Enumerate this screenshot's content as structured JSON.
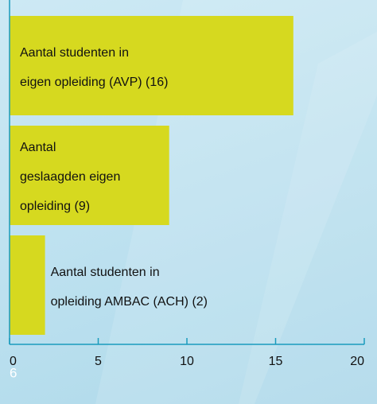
{
  "chart_data": {
    "type": "barh",
    "categories": [
      "Aantal studenten in\neigen opleiding (AVP) (16)",
      "Aantal\ngeslaagden eigen\nopleiding (9)",
      "Aantal studenten in\nopleiding AMBAC (ACH) (2)"
    ],
    "values": [
      16,
      9,
      2
    ],
    "color": "#d6d91f",
    "xlim": [
      0,
      20
    ],
    "xticks": [
      0,
      5,
      10,
      15,
      20
    ]
  },
  "page_number": "6"
}
